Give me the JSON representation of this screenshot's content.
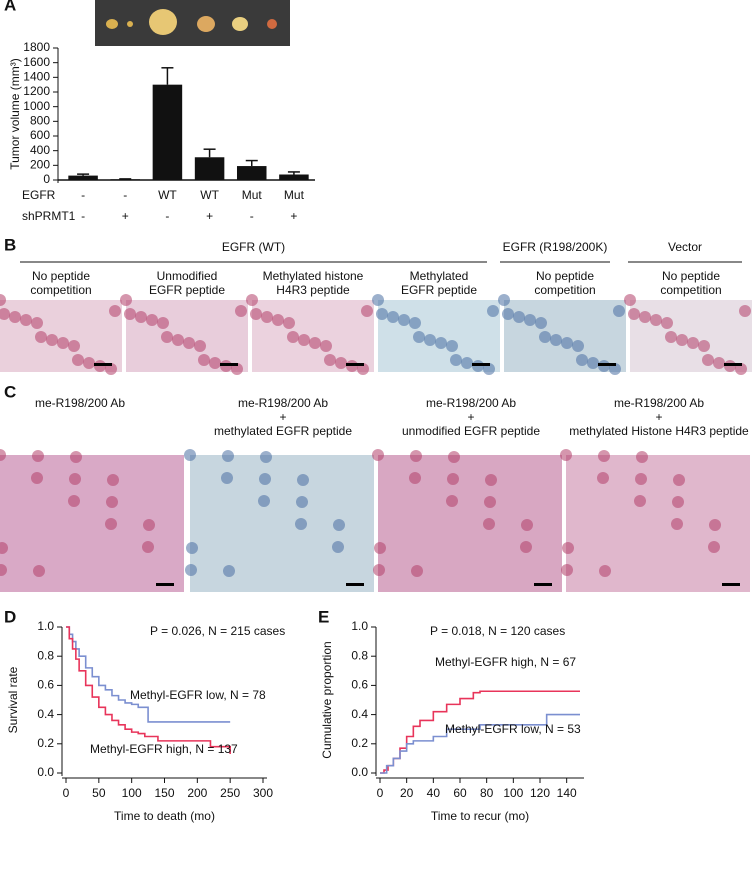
{
  "chart_data": [
    {
      "type": "bar",
      "panel": "A",
      "y_label": "Tumor volume (mm³)",
      "category_label": "EGFR",
      "categories": [
        "-",
        "-",
        "WT",
        "WT",
        "Mut",
        "Mut"
      ],
      "category2_label": "shPRMT1",
      "categories2": [
        "-",
        "+",
        "-",
        "+",
        "-",
        "+"
      ],
      "values": [
        60,
        10,
        1300,
        310,
        190,
        75
      ],
      "errors": [
        20,
        5,
        230,
        110,
        75,
        35
      ],
      "color": "#111111",
      "ylim": [
        0,
        1800
      ],
      "yticks": [
        0,
        200,
        400,
        600,
        800,
        1000,
        1200,
        1400,
        1600,
        1800
      ]
    },
    {
      "type": "line",
      "step": true,
      "panel": "D",
      "y_label": "Survival rate",
      "x_label": "Time to death (mo)",
      "annotation": "P = 0.026, N = 215 cases",
      "xlim": [
        0,
        300
      ],
      "xticks": [
        0,
        50,
        100,
        150,
        200,
        250,
        300
      ],
      "ylim": [
        0,
        1
      ],
      "yticks": [
        {
          "value": 0,
          "label": "0.0"
        },
        0.2,
        0.4,
        0.6,
        0.8,
        {
          "value": 1,
          "label": "1.0"
        }
      ],
      "series": [
        {
          "name": "Methyl-EGFR low, N = 78",
          "color": "#7b8fd0",
          "x": [
            0,
            5,
            10,
            15,
            20,
            30,
            40,
            50,
            60,
            70,
            80,
            90,
            100,
            110,
            120,
            125,
            130,
            250
          ],
          "values": [
            1,
            0.95,
            0.9,
            0.85,
            0.8,
            0.72,
            0.66,
            0.6,
            0.57,
            0.53,
            0.5,
            0.48,
            0.47,
            0.45,
            0.45,
            0.35,
            0.35,
            0.35
          ]
        },
        {
          "name": "Methyl-EGFR high, N = 137",
          "color": "#e8345a",
          "x": [
            0,
            5,
            10,
            15,
            20,
            30,
            40,
            50,
            60,
            70,
            80,
            90,
            100,
            110,
            120,
            140,
            150,
            200,
            220,
            250
          ],
          "values": [
            1,
            0.92,
            0.85,
            0.78,
            0.7,
            0.6,
            0.52,
            0.45,
            0.4,
            0.36,
            0.33,
            0.3,
            0.28,
            0.27,
            0.25,
            0.22,
            0.22,
            0.22,
            0.18,
            0.13
          ]
        }
      ]
    },
    {
      "type": "line",
      "step": true,
      "panel": "E",
      "y_label": "Cumulative proportion",
      "x_label": "Time to recur (mo)",
      "annotation": "P = 0.018, N = 120 cases",
      "xlim": [
        0,
        150
      ],
      "xticks": [
        0,
        20,
        40,
        60,
        80,
        100,
        120,
        140
      ],
      "ylim": [
        0,
        1
      ],
      "yticks": [
        {
          "value": 0,
          "label": "0.0"
        },
        0.2,
        0.4,
        0.6,
        0.8,
        {
          "value": 1,
          "label": "1.0"
        }
      ],
      "series": [
        {
          "name": "Methyl-EGFR high, N = 67",
          "color": "#e8345a",
          "x": [
            0,
            3,
            6,
            10,
            15,
            20,
            25,
            30,
            40,
            50,
            60,
            65,
            70,
            75,
            80,
            150
          ],
          "values": [
            0,
            0.02,
            0.05,
            0.1,
            0.17,
            0.25,
            0.32,
            0.36,
            0.42,
            0.47,
            0.51,
            0.51,
            0.55,
            0.56,
            0.56,
            0.56
          ]
        },
        {
          "name": "Methyl-EGFR low, N = 53",
          "color": "#7b8fd0",
          "x": [
            0,
            5,
            10,
            15,
            20,
            25,
            40,
            50,
            60,
            75,
            90,
            120,
            125,
            150
          ],
          "values": [
            0,
            0.05,
            0.1,
            0.15,
            0.2,
            0.22,
            0.25,
            0.3,
            0.3,
            0.33,
            0.33,
            0.33,
            0.4,
            0.4
          ]
        }
      ]
    }
  ],
  "panel_b": {
    "label": "B",
    "groups": [
      "EGFR (WT)",
      "EGFR (R198/200K)",
      "Vector"
    ],
    "captions": [
      [
        "No peptide",
        "competition"
      ],
      [
        "Unmodified",
        "EGFR peptide"
      ],
      [
        "Methylated histone",
        "H4R3  peptide"
      ],
      [
        "Methylated",
        "EGFR peptide"
      ],
      [
        "No peptide",
        "competition"
      ],
      [
        "No peptide",
        "competition"
      ]
    ]
  },
  "panel_c": {
    "label": "C",
    "captions": [
      [
        "me-R198/200 Ab"
      ],
      [
        "me-R198/200 Ab",
        "+",
        "methylated EGFR peptide"
      ],
      [
        "me-R198/200 Ab",
        "+",
        "unmodified EGFR peptide"
      ],
      [
        "me-R198/200 Ab",
        "+",
        "methylated Histone H4R3  peptide"
      ]
    ]
  }
}
